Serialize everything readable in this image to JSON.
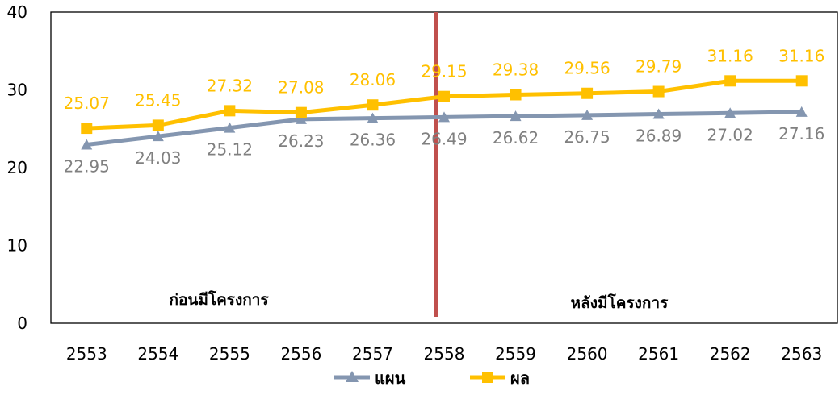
{
  "chart_data": {
    "type": "line",
    "categories": [
      "2553",
      "2554",
      "2555",
      "2556",
      "2557",
      "2558",
      "2559",
      "2560",
      "2561",
      "2562",
      "2563"
    ],
    "ylim": [
      0,
      40
    ],
    "yticks": [
      0,
      10,
      20,
      30,
      40
    ],
    "grid": false,
    "legend_position": "bottom",
    "series": [
      {
        "name": "แผน",
        "values": [
          22.95,
          24.03,
          25.12,
          26.23,
          26.36,
          26.49,
          26.62,
          26.75,
          26.89,
          27.02,
          27.16
        ],
        "labels": [
          "22.95",
          "24.03",
          "25.12",
          "26.23",
          "26.36",
          "26.49",
          "26.62",
          "26.75",
          "26.89",
          "27.02",
          "27.16"
        ],
        "color": "#8496B0",
        "label_color": "#808080",
        "marker": "triangle",
        "label_position": "below"
      },
      {
        "name": "ผล",
        "values": [
          25.07,
          25.45,
          27.32,
          27.08,
          28.06,
          29.15,
          29.38,
          29.56,
          29.79,
          31.16,
          31.16
        ],
        "labels": [
          "25.07",
          "25.45",
          "27.32",
          "27.08",
          "28.06",
          "29.15",
          "29.38",
          "29.56",
          "29.79",
          "31.16",
          "31.16"
        ],
        "color": "#FFC000",
        "label_color": "#FFC000",
        "marker": "square",
        "label_position": "above"
      }
    ],
    "divider": {
      "after_category": "2558",
      "color": "#C0504D"
    },
    "annotations": {
      "before": "ก่อนมีโครงการ",
      "after": "หลังมีโครงการ"
    }
  }
}
